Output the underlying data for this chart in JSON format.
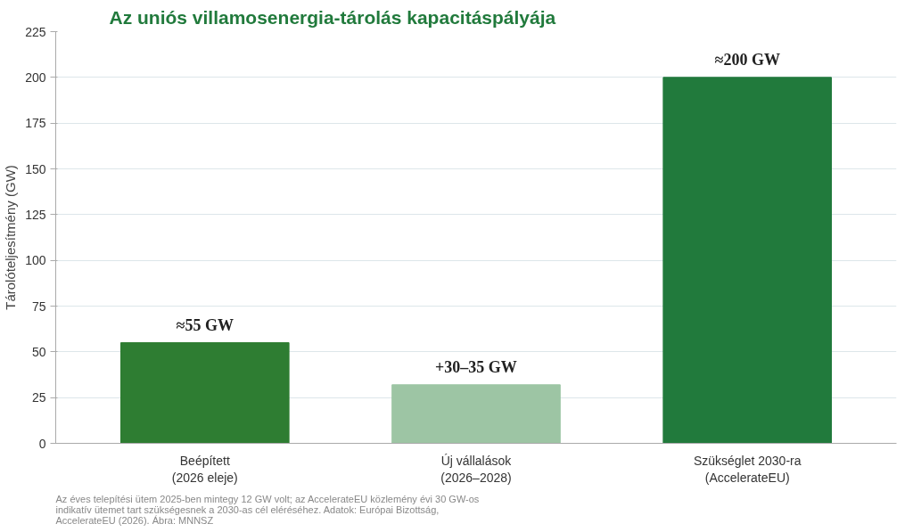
{
  "chart_data": {
    "type": "bar",
    "title": "Az uniós villamosenergia-tárolás kapacitáspályája",
    "ylabel": "Tárolóteljesítmény (GW)",
    "categories": [
      "Beépített\n(2026 eleje)",
      "Új vállalások\n(2026–2028)",
      "Szükséglet 2030-ra\n(AccelerateEU)"
    ],
    "values": [
      55,
      32,
      200
    ],
    "colors": [
      "#2e7d32",
      "#9dc5a4",
      "#217a3c"
    ],
    "value_labels": [
      "≈55 GW",
      "+30–35 GW",
      "≈200 GW"
    ],
    "ylim": [
      0,
      225
    ],
    "yticks": [
      0,
      25,
      50,
      75,
      100,
      125,
      150,
      175,
      200,
      225
    ],
    "grid": "y",
    "annotations": [
      "Az éves telepítési ütem 2025-ben mintegy 12 GW volt; az AccelerateEU közlemény évi 30 GW-os indikatív ütemet tart szükségesnek a 2030-as cél eléréséhez.  Adatok: Európai Bizottság, AccelerateEU (2026).  Ábra: MNNSZ"
    ]
  }
}
